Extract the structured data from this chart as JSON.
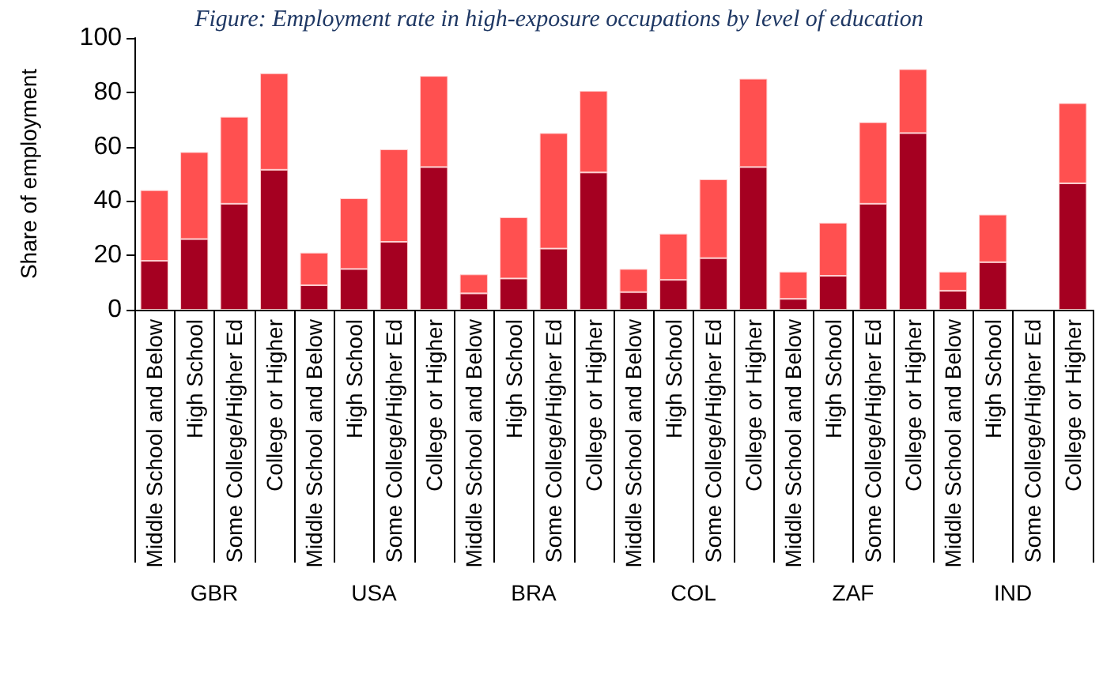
{
  "chart_data": {
    "type": "bar",
    "title": "Figure: Employment rate in high-exposure occupations by level of education",
    "ylabel": "Share of employment",
    "stacked": true,
    "grid": false,
    "categories": [
      "Middle School and Below",
      "High School",
      "Some College/Higher Ed",
      "College or Higher",
      "Middle School and Below",
      "High School",
      "Some College/Higher Ed",
      "College or Higher",
      "Middle School and Below",
      "High School",
      "Some College/Higher Ed",
      "College or Higher",
      "Middle School and Below",
      "High School",
      "Some College/Higher Ed",
      "College or Higher",
      "Middle School and Below",
      "High School",
      "Some College/Higher Ed",
      "College or Higher",
      "Middle School and Below",
      "High School",
      "Some College/Higher Ed",
      "College or Higher"
    ],
    "annotations": [
      "GBR",
      "USA",
      "BRA",
      "COL",
      "ZAF",
      "IND"
    ],
    "series": [
      {
        "color": "#a50021",
        "values": [
          18,
          26,
          39,
          51.5,
          9,
          15,
          25,
          52.5,
          6,
          11.5,
          22.5,
          50.5,
          6.5,
          11,
          19,
          52.5,
          4,
          12.5,
          39,
          65,
          7,
          17.5,
          null,
          46.5
        ]
      },
      {
        "color": "#ff5050",
        "values": [
          26,
          32,
          32,
          35.5,
          12,
          26,
          34,
          33.5,
          7,
          22.5,
          42.5,
          30,
          8.5,
          17,
          29,
          32.5,
          10,
          19.5,
          30,
          23.5,
          7,
          17.5,
          null,
          29.5
        ]
      }
    ],
    "ylim": [
      0,
      100
    ],
    "yticks": [
      0,
      20,
      40,
      60,
      80,
      100
    ]
  }
}
